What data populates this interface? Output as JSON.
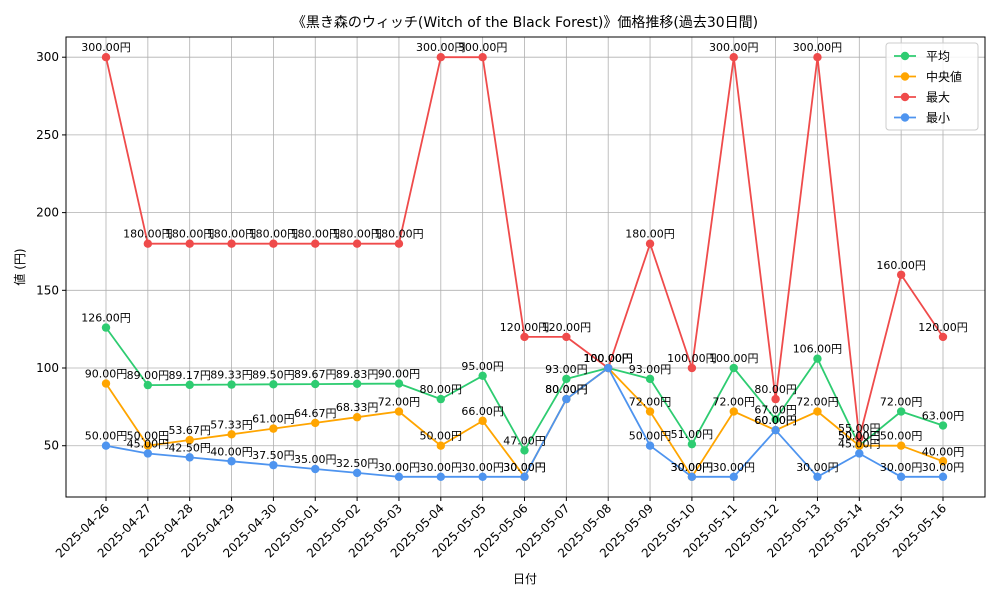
{
  "chart_data": {
    "type": "line",
    "title": "《黒き森のウィッチ(Witch of the Black Forest)》価格推移(過去30日間)",
    "xlabel": "日付",
    "ylabel": "値 (円)",
    "categories": [
      "2025-04-26",
      "2025-04-27",
      "2025-04-28",
      "2025-04-29",
      "2025-04-30",
      "2025-05-01",
      "2025-05-02",
      "2025-05-03",
      "2025-05-04",
      "2025-05-05",
      "2025-05-06",
      "2025-05-07",
      "2025-05-08",
      "2025-05-09",
      "2025-05-10",
      "2025-05-11",
      "2025-05-12",
      "2025-05-13",
      "2025-05-14",
      "2025-05-15",
      "2025-05-16"
    ],
    "ylim": [
      17,
      313
    ],
    "yticks": [
      50,
      100,
      150,
      200,
      250,
      300
    ],
    "grid": true,
    "legend_position": "top-right",
    "value_label_suffix": "円",
    "series": [
      {
        "name": "平均",
        "color": "#2ecc71",
        "values": [
          126,
          89,
          89.17,
          89.33,
          89.5,
          89.67,
          89.83,
          90,
          80,
          95,
          47,
          93,
          100,
          93,
          51,
          100,
          67,
          106,
          50,
          72,
          63
        ]
      },
      {
        "name": "中央値",
        "color": "#ffa500",
        "values": [
          90,
          50,
          53.67,
          57.33,
          61,
          64.67,
          68.33,
          72,
          50,
          66,
          30,
          80,
          100,
          72,
          30,
          72,
          60,
          72,
          50,
          50,
          40
        ]
      },
      {
        "name": "最大",
        "color": "#ef4b4b",
        "values": [
          300,
          180,
          180,
          180,
          180,
          180,
          180,
          180,
          300,
          300,
          120,
          120,
          100,
          180,
          100,
          300,
          80,
          300,
          55,
          160,
          120
        ]
      },
      {
        "name": "最小",
        "color": "#4e94ef",
        "values": [
          50,
          45,
          42.5,
          40,
          37.5,
          35,
          32.5,
          30,
          30,
          30,
          30,
          80,
          100,
          50,
          30,
          30,
          60,
          30,
          45,
          30,
          30
        ]
      }
    ]
  }
}
